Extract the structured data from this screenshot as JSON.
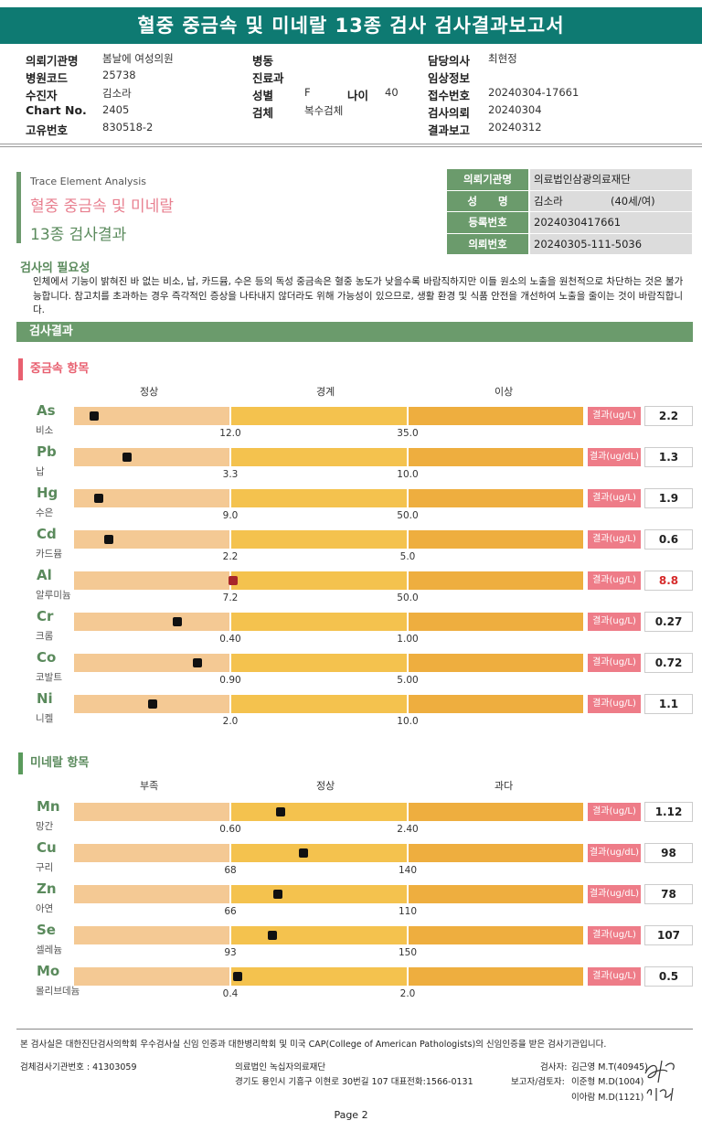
{
  "title": "혈중 중금속 및 미네랄 13종 검사 검사결과보고서",
  "header": {
    "hospital_label": "의뢰기관명",
    "hospital": "봄날에 여성의원",
    "ward_label": "병동",
    "doctor_label": "담당의사",
    "doctor": "최현정",
    "code_label": "병원코드",
    "code": "25738",
    "dept_label": "진료과",
    "clinical_label": "임상정보",
    "patient_label": "수진자",
    "patient": "김소라",
    "sex_label": "성별",
    "sex": "F",
    "age_label": "나이",
    "age": "40",
    "receipt_label": "접수번호",
    "receipt": "20240304-17661",
    "chart_label": "Chart No.",
    "chart": "2405",
    "specimen_label": "검체",
    "specimen": "복수검체",
    "request_label": "검사의뢰",
    "request": "20240304",
    "id_label": "고유번호",
    "id": "830518-2",
    "report_label": "결과보고",
    "report": "20240312"
  },
  "analysis": {
    "sub": "Trace Element Analysis",
    "title1": "혈중 중금속 및 미네랄",
    "title2": "13종 검사결과"
  },
  "patient_table": [
    {
      "key": "의뢰기관명",
      "value": "의료법인삼광의료재단"
    },
    {
      "key": "성　　명",
      "value": "김소라",
      "extra": "(40세/여)"
    },
    {
      "key": "등록번호",
      "value": "2024030417661"
    },
    {
      "key": "의뢰번호",
      "value": "20240305-111-5036"
    }
  ],
  "necessity": {
    "title": "검사의 필요성",
    "text": "인체에서 기능이 밝혀진 바 없는 비소, 납, 카드뮴, 수은 등의 독성 중금속은 혈중 농도가 낮을수록 바람직하지만 이들 원소의 노출을 원천적으로 차단하는 것은 불가능합니다. 참고치를 초과하는 경우 즉각적인 증상을 나타내지 않더라도 위해 가능성이 있으므로, 생활 환경 및 식품 안전을 개선하여 노출을 줄이는 것이 바람직합니다."
  },
  "result_title": "검사결과",
  "heavy": {
    "title": "중금속 항목",
    "zones": [
      "정상",
      "경계",
      "이상"
    ],
    "items": [
      {
        "sym": "As",
        "name": "비소",
        "t1": "12.0",
        "t2": "35.0",
        "unit": "결과(ug/L)",
        "value": "2.2",
        "level": 0.04
      },
      {
        "sym": "Pb",
        "name": "납",
        "t1": "3.3",
        "t2": "10.0",
        "unit": "결과(ug/dL)",
        "value": "1.3",
        "level": 0.105
      },
      {
        "sym": "Hg",
        "name": "수은",
        "t1": "9.0",
        "t2": "50.0",
        "unit": "결과(ug/L)",
        "value": "1.9",
        "level": 0.048
      },
      {
        "sym": "Cd",
        "name": "카드뮴",
        "t1": "2.2",
        "t2": "5.0",
        "unit": "결과(ug/L)",
        "value": "0.6",
        "level": 0.069
      },
      {
        "sym": "Al",
        "name": "알루미늄",
        "t1": "7.2",
        "t2": "50.0",
        "unit": "결과(ug/L)",
        "value": "8.8",
        "level": 0.312,
        "alert": true
      },
      {
        "sym": "Cr",
        "name": "크롬",
        "t1": "0.40",
        "t2": "1.00",
        "unit": "결과(ug/L)",
        "value": "0.27",
        "level": 0.203
      },
      {
        "sym": "Co",
        "name": "코발트",
        "t1": "0.90",
        "t2": "5.00",
        "unit": "결과(ug/L)",
        "value": "0.72",
        "level": 0.243
      },
      {
        "sym": "Ni",
        "name": "니켈",
        "t1": "2.0",
        "t2": "10.0",
        "unit": "결과(ug/L)",
        "value": "1.1",
        "level": 0.155
      }
    ]
  },
  "mineral": {
    "title": "미네랄 항목",
    "zones": [
      "부족",
      "정상",
      "과다"
    ],
    "items": [
      {
        "sym": "Mn",
        "name": "망간",
        "t1": "0.60",
        "t2": "2.40",
        "unit": "결과(ug/L)",
        "value": "1.12",
        "level": 0.405
      },
      {
        "sym": "Cu",
        "name": "구리",
        "t1": "68",
        "t2": "140",
        "unit": "결과(ug/dL)",
        "value": "98",
        "level": 0.45
      },
      {
        "sym": "Zn",
        "name": "아연",
        "t1": "66",
        "t2": "110",
        "unit": "결과(ug/dL)",
        "value": "78",
        "level": 0.4
      },
      {
        "sym": "Se",
        "name": "셀레늄",
        "t1": "93",
        "t2": "150",
        "unit": "결과(ug/L)",
        "value": "107",
        "level": 0.39
      },
      {
        "sym": "Mo",
        "name": "몰리브데늄",
        "t1": "0.4",
        "t2": "2.0",
        "unit": "결과(ug/L)",
        "value": "0.5",
        "level": 0.322
      }
    ]
  },
  "footer": {
    "note": "본 검사실은 대한진단검사의학회 우수검사실 신임 인증과 대한병리학회 및 미국 CAP(College of American Pathologists)의 신임인증을 받은 검사기관입니다.",
    "agency": "검체검사기관번호 : 41303059",
    "foundation": "의료법인 녹십자의료재단",
    "address": "경기도 용인시 기흥구 이현로 30번길 107 대표전화:1566-0131",
    "tester_label": "검사자:",
    "tester": "김근영 M.T(40945)",
    "reporter_label": "보고자/검토자:",
    "reporter1": "이준형 M.D(1004)",
    "reporter2": "이아람 M.D(1121)",
    "page": "Page 2"
  }
}
